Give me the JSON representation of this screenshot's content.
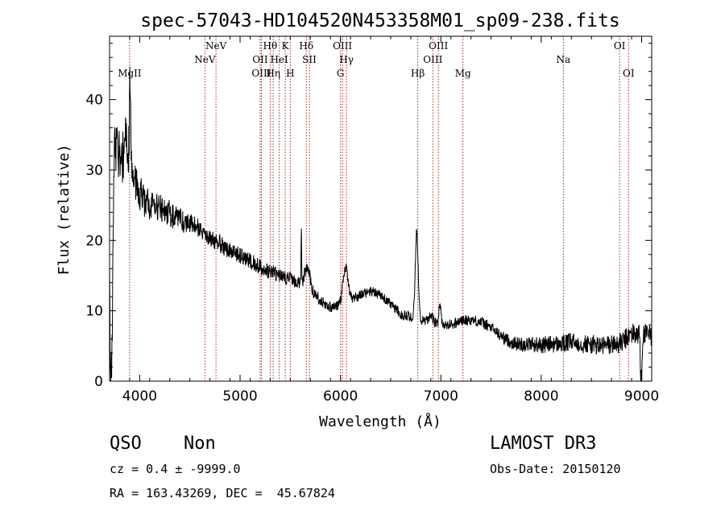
{
  "chart_data": {
    "type": "line",
    "title": "spec-57043-HD104520N453358M01_sp09-238.fits",
    "xlabel": "Wavelength (Å)",
    "ylabel": "Flux (relative)",
    "xlim": [
      3700,
      9100
    ],
    "ylim": [
      0,
      49
    ],
    "xticks": [
      4000,
      5000,
      6000,
      7000,
      8000,
      9000
    ],
    "yticks": [
      0,
      10,
      20,
      30,
      40
    ],
    "grid": false,
    "series": [
      {
        "name": "spectrum",
        "baseline": [
          [
            3700,
            33
          ],
          [
            3750,
            34
          ],
          [
            3800,
            32
          ],
          [
            3850,
            31
          ],
          [
            3900,
            29.5
          ],
          [
            3950,
            28
          ],
          [
            4000,
            26.5
          ],
          [
            4100,
            25
          ],
          [
            4200,
            24.5
          ],
          [
            4300,
            23.8
          ],
          [
            4400,
            23
          ],
          [
            4500,
            22.3
          ],
          [
            4600,
            21.5
          ],
          [
            4700,
            20.5
          ],
          [
            4800,
            19.5
          ],
          [
            4900,
            18.5
          ],
          [
            5000,
            17.8
          ],
          [
            5100,
            17
          ],
          [
            5200,
            16.2
          ],
          [
            5300,
            15.5
          ],
          [
            5400,
            15
          ],
          [
            5500,
            14.5
          ],
          [
            5600,
            14
          ],
          [
            5700,
            13
          ],
          [
            5800,
            11.5
          ],
          [
            5900,
            10.5
          ],
          [
            6000,
            10.8
          ],
          [
            6100,
            11.5
          ],
          [
            6200,
            12.3
          ],
          [
            6300,
            12.8
          ],
          [
            6400,
            12.3
          ],
          [
            6500,
            11
          ],
          [
            6600,
            9.5
          ],
          [
            6700,
            9.2
          ],
          [
            6800,
            8.6
          ],
          [
            6900,
            8.3
          ],
          [
            7000,
            8
          ],
          [
            7100,
            8
          ],
          [
            7200,
            8.6
          ],
          [
            7300,
            8.7
          ],
          [
            7400,
            8.4
          ],
          [
            7500,
            7.6
          ],
          [
            7600,
            6.4
          ],
          [
            7700,
            5.5
          ],
          [
            7800,
            5.2
          ],
          [
            7900,
            5.3
          ],
          [
            8000,
            5.1
          ],
          [
            8100,
            5.3
          ],
          [
            8200,
            5.2
          ],
          [
            8300,
            5.6
          ],
          [
            8400,
            5.3
          ],
          [
            8500,
            5.2
          ],
          [
            8600,
            5.0
          ],
          [
            8700,
            5.2
          ],
          [
            8800,
            5.4
          ],
          [
            8900,
            6.8
          ],
          [
            9000,
            6.5
          ],
          [
            9100,
            6.5
          ]
        ],
        "features": [
          [
            3715,
            15,
            -34
          ],
          [
            3870,
            20,
            4
          ],
          [
            3905,
            6,
            14
          ],
          [
            5610,
            3,
            8
          ],
          [
            5670,
            25,
            3
          ],
          [
            6050,
            25,
            5
          ],
          [
            6760,
            14,
            12.5
          ],
          [
            6900,
            20,
            1
          ],
          [
            6990,
            10,
            3
          ],
          [
            8990,
            4,
            -6
          ],
          [
            9000,
            5,
            -5
          ]
        ],
        "noise": [
          [
            3700,
            4.5
          ],
          [
            4100,
            2.3
          ],
          [
            4600,
            1.4
          ],
          [
            5500,
            1.0
          ],
          [
            6000,
            0.7
          ],
          [
            7500,
            0.8
          ],
          [
            8000,
            1.2
          ],
          [
            9000,
            1.6
          ]
        ],
        "step": 3
      }
    ],
    "lines": [
      {
        "label": "MgII",
        "wave": 3900,
        "tier": 3
      },
      {
        "label": "NeV",
        "wave": 4650,
        "tier": 2
      },
      {
        "label": "NeV",
        "wave": 4760,
        "tier": 1
      },
      {
        "label": "OII",
        "wave": 5200,
        "tier": 2
      },
      {
        "label": "OIII",
        "wave": 5212,
        "tier": 3
      },
      {
        "label": "Hθ",
        "wave": 5300,
        "tier": 1
      },
      {
        "label": "Hη",
        "wave": 5330,
        "tier": 3
      },
      {
        "label": "HeI",
        "wave": 5390,
        "tier": 2
      },
      {
        "label": "K",
        "wave": 5450,
        "tier": 1
      },
      {
        "label": "H",
        "wave": 5500,
        "tier": 3
      },
      {
        "label": "Hδ",
        "wave": 5660,
        "tier": 1
      },
      {
        "label": "SII",
        "wave": 5690,
        "tier": 2
      },
      {
        "label": "OIII",
        "wave": 6020,
        "tier": 1
      },
      {
        "label": "Hγ",
        "wave": 6060,
        "tier": 2
      },
      {
        "label": "G",
        "wave": 6000,
        "tier": 3
      },
      {
        "label": "Hβ",
        "wave": 6770,
        "tier": 3
      },
      {
        "label": "OIII",
        "wave": 6920,
        "tier": 2
      },
      {
        "label": "OIII",
        "wave": 6975,
        "tier": 1
      },
      {
        "label": "Mg",
        "wave": 7220,
        "tier": 3
      },
      {
        "label": "Na",
        "wave": 8220,
        "tier": 2
      },
      {
        "label": "OI",
        "wave": 8780,
        "tier": 1
      },
      {
        "label": "OI",
        "wave": 8870,
        "tier": 3
      }
    ],
    "colors": {
      "spectrum": "#000000",
      "lines": "#b22222",
      "axes": "#000000"
    }
  },
  "info": {
    "class_label": "QSO",
    "subclass_label": "Non",
    "survey_label": "LAMOST DR3",
    "cz_text": "cz = 0.4 ± -9999.0",
    "obs_date_text": "Obs-Date: 20150120",
    "coords_text": "RA = 163.43269, DEC =  45.67824"
  }
}
